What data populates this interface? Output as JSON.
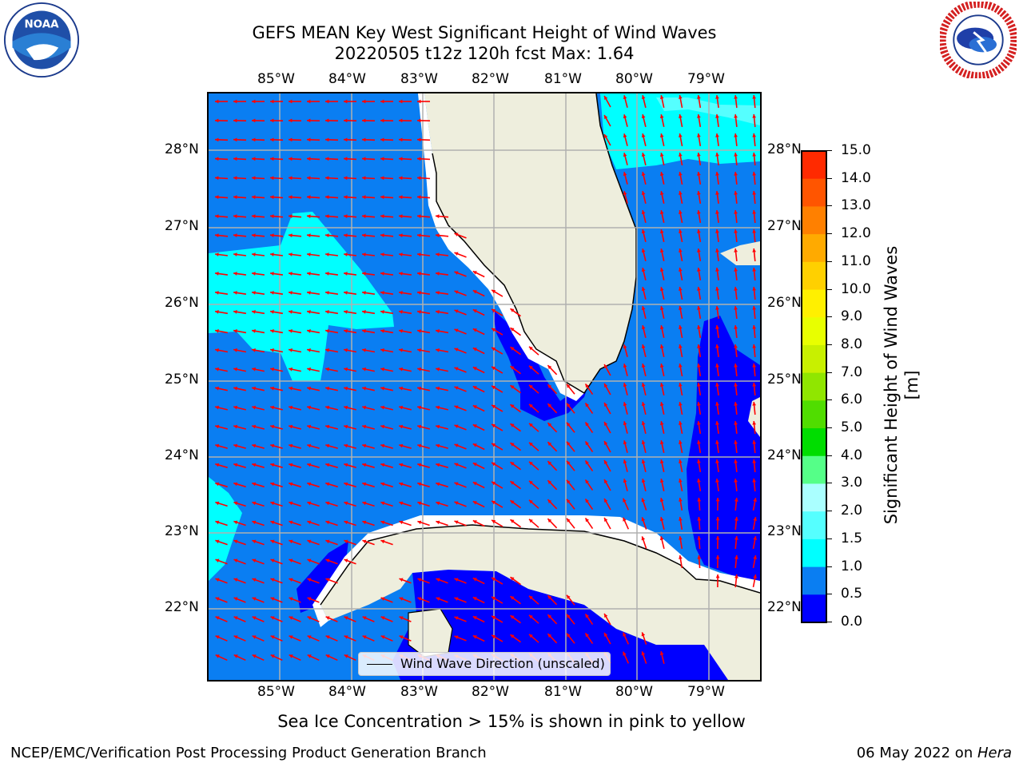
{
  "header": {
    "title_line1": "GEFS MEAN Key West Significant Height of Wind Waves",
    "title_line2": "20220505 t12z 120h fcst   Max: 1.64"
  },
  "map": {
    "lon_labels": [
      "85°W",
      "84°W",
      "83°W",
      "82°W",
      "81°W",
      "80°W",
      "79°W"
    ],
    "lat_labels": [
      "28°N",
      "27°N",
      "26°N",
      "25°N",
      "24°N",
      "23°N",
      "22°N"
    ],
    "legend_label": "Wind Wave Direction (unscaled)",
    "colors": {
      "ocean_low": "#0000ff",
      "ocean_mid": "#0a7ef2",
      "ocean_high": "#00ffff",
      "land": "#eeeedd",
      "arrows": "#ff0000",
      "grid": "#b0b0b0"
    }
  },
  "colorbar": {
    "title": "Significant Height of Wind Waves [m]",
    "tick_labels": [
      "15.0",
      "14.0",
      "13.0",
      "12.0",
      "11.0",
      "10.0",
      "9.0",
      "8.0",
      "7.0",
      "6.0",
      "5.0",
      "4.0",
      "3.0",
      "2.0",
      "1.5",
      "1.0",
      "0.5",
      "0.0"
    ],
    "band_colors": [
      "#ff0000",
      "#ff2000",
      "#ff4400",
      "#ff7700",
      "#ff9900",
      "#ffbb00",
      "#ffdd00",
      "#ffff00",
      "#e6ff00",
      "#c0f000",
      "#80e000",
      "#40dd00",
      "#00dd00",
      "#00ee40",
      "#55ff88",
      "#aaffff",
      "#55ffff",
      "#00ffff",
      "#0a7ef2",
      "#0000ff"
    ]
  },
  "notes": {
    "sea_ice": "Sea Ice Concentration > 15% is shown in pink to yellow"
  },
  "footer": {
    "left": "NCEP/EMC/Verification Post Processing Product Generation Branch",
    "right_date": "06 May 2022 on ",
    "right_machine": "Hera"
  },
  "logos": {
    "left": "noaa-logo",
    "right": "nws-logo"
  }
}
